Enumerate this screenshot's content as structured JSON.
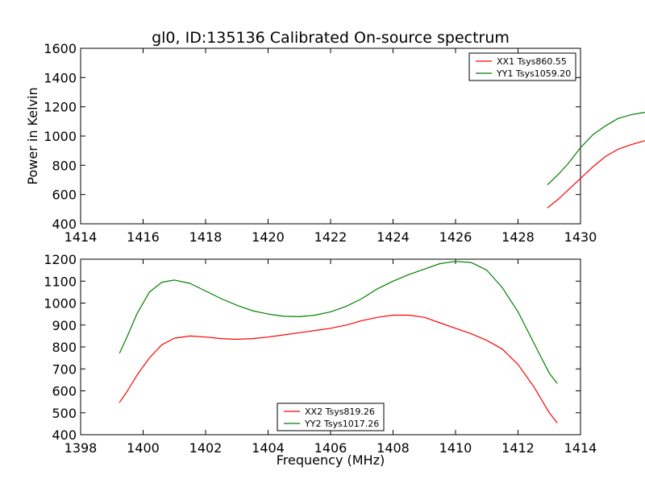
{
  "figure": {
    "title": "gl0, ID:135136 Calibrated On-source spectrum",
    "ylabel": "Power in Kelvin",
    "xlabel": "Frequency (MHz)"
  },
  "chart_data": [
    {
      "type": "line",
      "title": "gl0, ID:135136 Calibrated On-source spectrum",
      "xlabel": "",
      "ylabel": "Power in Kelvin",
      "xlim": [
        1414,
        1430
      ],
      "ylim": [
        400,
        1600
      ],
      "x_ticks": [
        1414,
        1416,
        1418,
        1420,
        1422,
        1424,
        1426,
        1428,
        1430
      ],
      "y_ticks": [
        400,
        600,
        800,
        1000,
        1200,
        1400,
        1600
      ],
      "legend_position": "top-right",
      "grid": false,
      "series": [
        {
          "name": "XX1 Tsys860.55",
          "color": "#ff0000",
          "points": [
            [
              14.95,
              510
            ],
            [
              15.3,
              570
            ],
            [
              15.6,
              630
            ],
            [
              16.0,
              710
            ],
            [
              16.4,
              790
            ],
            [
              16.8,
              860
            ],
            [
              17.2,
              910
            ],
            [
              17.6,
              940
            ],
            [
              18.0,
              965
            ],
            [
              18.5,
              990
            ],
            [
              19.0,
              1005
            ],
            [
              19.5,
              1025
            ],
            [
              19.8,
              1040
            ],
            [
              20.0,
              1100
            ],
            [
              20.2,
              1085
            ],
            [
              20.35,
              1090
            ],
            [
              20.45,
              1100
            ],
            [
              20.5,
              1150
            ],
            [
              20.55,
              945
            ],
            [
              20.6,
              1280
            ],
            [
              20.65,
              1340
            ],
            [
              20.7,
              1210
            ],
            [
              20.75,
              1290
            ],
            [
              20.8,
              1160
            ],
            [
              20.85,
              980
            ],
            [
              20.9,
              1100
            ],
            [
              21.0,
              1080
            ],
            [
              21.3,
              1070
            ],
            [
              21.6,
              1050
            ],
            [
              22.0,
              1020
            ],
            [
              22.5,
              990
            ],
            [
              23.0,
              950
            ],
            [
              23.5,
              910
            ],
            [
              24.0,
              870
            ],
            [
              24.5,
              825
            ],
            [
              25.0,
              790
            ],
            [
              25.5,
              770
            ],
            [
              26.0,
              758
            ],
            [
              26.5,
              745
            ],
            [
              27.0,
              720
            ],
            [
              27.5,
              660
            ],
            [
              28.0,
              580
            ],
            [
              28.5,
              495
            ],
            [
              28.9,
              440
            ]
          ]
        },
        {
          "name": "YY1 Tsys1059.20",
          "color": "#008000",
          "points": [
            [
              14.95,
              668
            ],
            [
              15.3,
              740
            ],
            [
              15.6,
              810
            ],
            [
              16.0,
              920
            ],
            [
              16.4,
              1010
            ],
            [
              16.8,
              1070
            ],
            [
              17.2,
              1120
            ],
            [
              17.6,
              1145
            ],
            [
              18.0,
              1160
            ],
            [
              18.5,
              1175
            ],
            [
              19.0,
              1185
            ],
            [
              19.5,
              1210
            ],
            [
              19.8,
              1250
            ],
            [
              20.0,
              1300
            ],
            [
              20.2,
              1285
            ],
            [
              20.35,
              1300
            ],
            [
              20.45,
              1330
            ],
            [
              20.5,
              1490
            ],
            [
              20.55,
              1290
            ],
            [
              20.6,
              1330
            ],
            [
              20.65,
              1580
            ],
            [
              20.7,
              1310
            ],
            [
              20.75,
              1290
            ],
            [
              20.8,
              1230
            ],
            [
              20.85,
              1185
            ],
            [
              20.9,
              1310
            ],
            [
              21.2,
              1300
            ],
            [
              21.5,
              1295
            ],
            [
              22.0,
              1290
            ],
            [
              22.5,
              1280
            ],
            [
              23.0,
              1260
            ],
            [
              23.5,
              1220
            ],
            [
              24.0,
              1160
            ],
            [
              24.5,
              1090
            ],
            [
              25.0,
              1040
            ],
            [
              25.5,
              990
            ],
            [
              26.0,
              940
            ],
            [
              26.5,
              880
            ],
            [
              27.0,
              810
            ],
            [
              27.5,
              720
            ],
            [
              28.0,
              630
            ],
            [
              28.5,
              540
            ],
            [
              28.9,
              483
            ]
          ]
        }
      ]
    },
    {
      "type": "line",
      "title": "",
      "xlabel": "Frequency (MHz)",
      "ylabel": "",
      "xlim": [
        1398,
        1414
      ],
      "ylim": [
        400,
        1200
      ],
      "x_ticks": [
        1398,
        1400,
        1402,
        1404,
        1406,
        1408,
        1410,
        1412,
        1414
      ],
      "y_ticks": [
        400,
        500,
        600,
        700,
        800,
        900,
        1000,
        1100,
        1200
      ],
      "legend_position": "bottom-center",
      "grid": false,
      "series": [
        {
          "name": "XX2 Tsys819.26",
          "color": "#ff0000",
          "points": [
            [
              1399.25,
              548
            ],
            [
              1399.5,
              600
            ],
            [
              1399.8,
              670
            ],
            [
              1400.2,
              750
            ],
            [
              1400.6,
              810
            ],
            [
              1401.0,
              840
            ],
            [
              1401.5,
              850
            ],
            [
              1402.0,
              845
            ],
            [
              1402.5,
              838
            ],
            [
              1403.0,
              835
            ],
            [
              1403.5,
              838
            ],
            [
              1404.0,
              845
            ],
            [
              1404.5,
              855
            ],
            [
              1405.0,
              865
            ],
            [
              1405.5,
              875
            ],
            [
              1406.0,
              885
            ],
            [
              1406.5,
              900
            ],
            [
              1407.0,
              920
            ],
            [
              1407.5,
              935
            ],
            [
              1408.0,
              945
            ],
            [
              1408.5,
              945
            ],
            [
              1409.0,
              935
            ],
            [
              1409.5,
              910
            ],
            [
              1410.0,
              885
            ],
            [
              1410.5,
              860
            ],
            [
              1411.0,
              830
            ],
            [
              1411.5,
              790
            ],
            [
              1412.0,
              720
            ],
            [
              1412.5,
              620
            ],
            [
              1413.0,
              500
            ],
            [
              1413.25,
              455
            ]
          ]
        },
        {
          "name": "YY2 Tsys1017.26",
          "color": "#008000",
          "points": [
            [
              1399.25,
              773
            ],
            [
              1399.5,
              850
            ],
            [
              1399.8,
              950
            ],
            [
              1400.2,
              1050
            ],
            [
              1400.6,
              1095
            ],
            [
              1401.0,
              1105
            ],
            [
              1401.5,
              1090
            ],
            [
              1402.0,
              1055
            ],
            [
              1402.5,
              1020
            ],
            [
              1403.0,
              990
            ],
            [
              1403.5,
              965
            ],
            [
              1404.0,
              950
            ],
            [
              1404.5,
              940
            ],
            [
              1405.0,
              938
            ],
            [
              1405.5,
              945
            ],
            [
              1406.0,
              960
            ],
            [
              1406.5,
              985
            ],
            [
              1407.0,
              1020
            ],
            [
              1407.5,
              1065
            ],
            [
              1408.0,
              1100
            ],
            [
              1408.5,
              1130
            ],
            [
              1409.0,
              1155
            ],
            [
              1409.5,
              1180
            ],
            [
              1410.0,
              1190
            ],
            [
              1410.5,
              1185
            ],
            [
              1411.0,
              1150
            ],
            [
              1411.5,
              1070
            ],
            [
              1412.0,
              960
            ],
            [
              1412.5,
              820
            ],
            [
              1413.0,
              680
            ],
            [
              1413.25,
              635
            ]
          ]
        }
      ]
    }
  ]
}
